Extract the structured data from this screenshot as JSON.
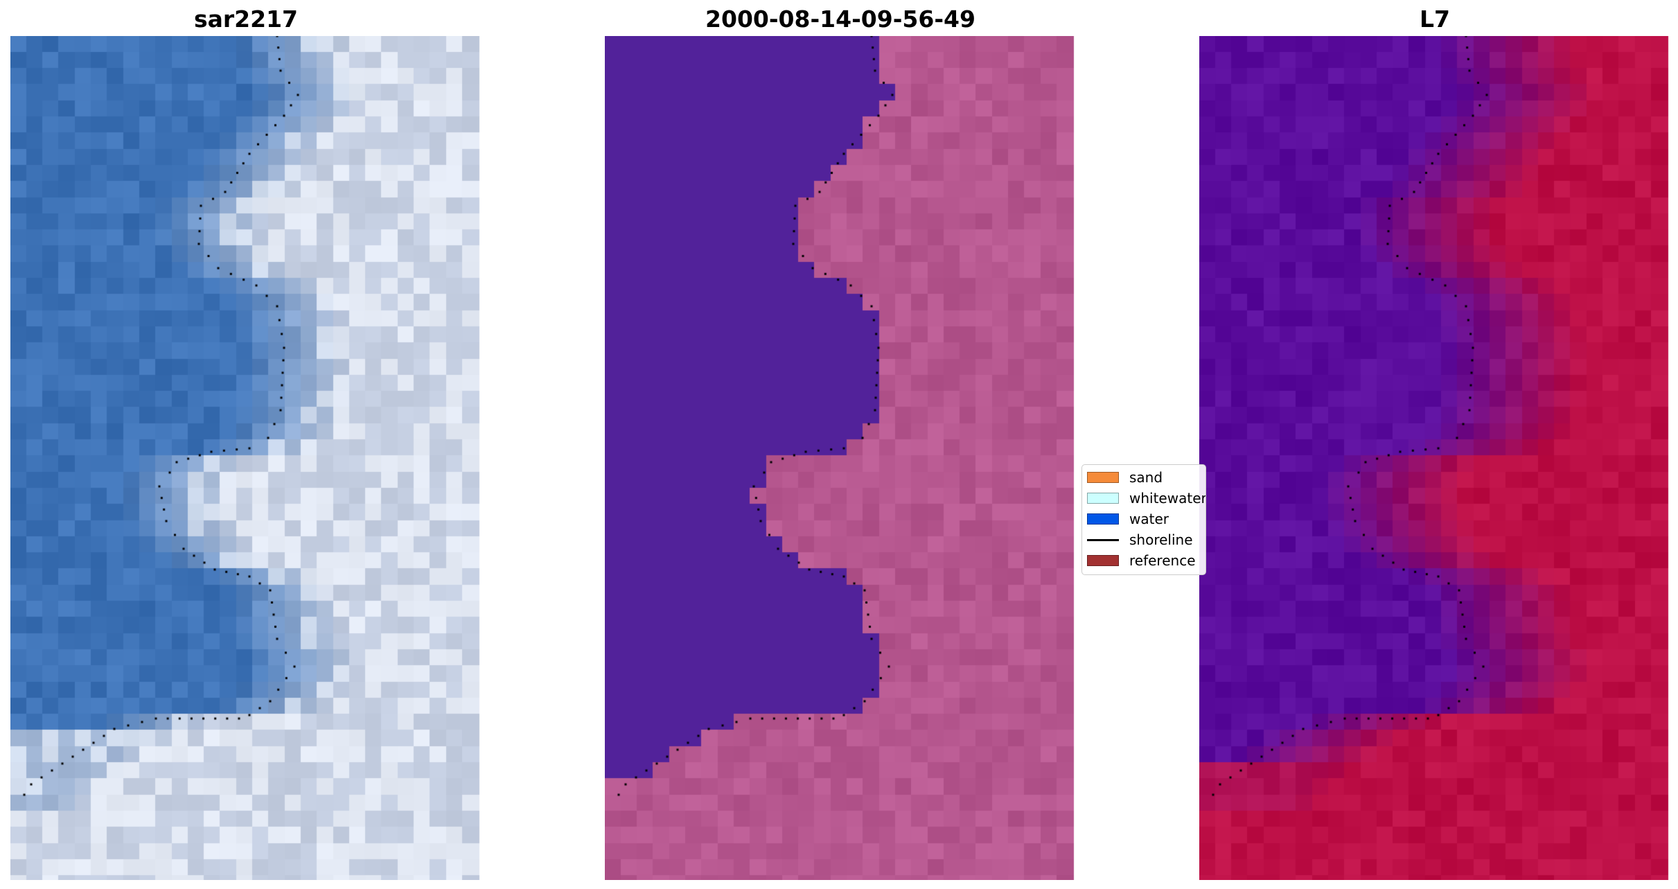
{
  "panels": [
    {
      "title": "sar2217",
      "scheme": "rgb"
    },
    {
      "title": "2000-08-14-09-56-49",
      "scheme": "classified"
    },
    {
      "title": "L7",
      "scheme": "index"
    }
  ],
  "legend": {
    "items": [
      {
        "label": "sand",
        "color": "#f58b3a",
        "kind": "patch"
      },
      {
        "label": "whitewater",
        "color": "#ccffff",
        "kind": "patch"
      },
      {
        "label": "water",
        "color": "#0057e7",
        "kind": "patch"
      },
      {
        "label": "shoreline",
        "color": "#000000",
        "kind": "line"
      },
      {
        "label": "reference",
        "color": "#a23131",
        "kind": "patch"
      }
    ]
  },
  "colors": {
    "water_true": "#3d72b6",
    "land_true": "#c9d3e6",
    "classified_water": "#52229a",
    "classified_land": "#b6578f",
    "index_low": "#5a0c9c",
    "index_high": "#bd0f46",
    "shoreline": "#000000"
  }
}
